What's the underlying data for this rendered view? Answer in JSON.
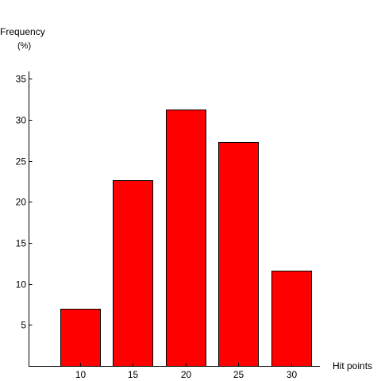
{
  "chart_data": {
    "type": "bar",
    "title": "",
    "xlabel": "Hit points",
    "ylabel": "Frequency",
    "ylabel_unit": "(%)",
    "categories": [
      "10",
      "15",
      "20",
      "25",
      "30"
    ],
    "values": [
      7.0,
      22.6,
      31.2,
      27.3,
      11.6
    ],
    "ylim": [
      0,
      36
    ],
    "yticks": [
      5,
      10,
      15,
      20,
      25,
      30,
      35
    ],
    "bar_color": "#ff0000",
    "grid": false,
    "legend": "none"
  }
}
